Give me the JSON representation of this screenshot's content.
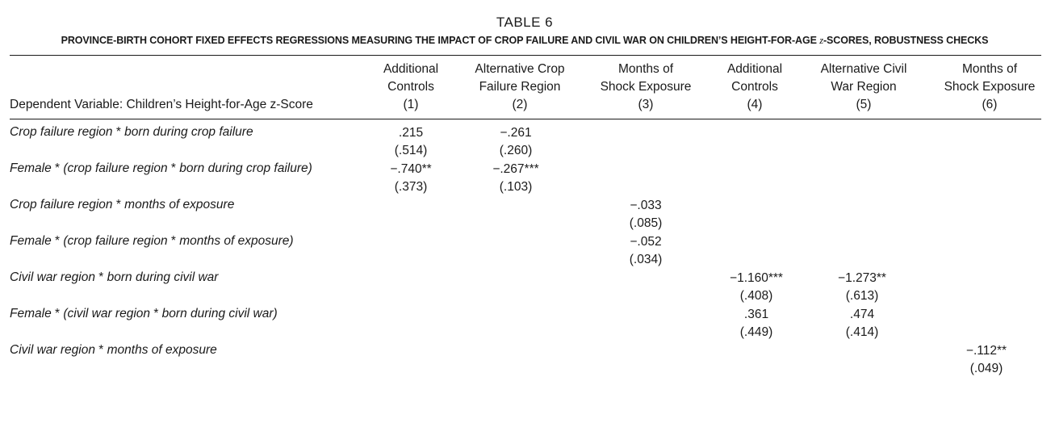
{
  "table": {
    "number": "TABLE 6",
    "caption_pre": "PROVINCE-BIRTH COHORT FIXED EFFECTS REGRESSIONS MEASURING THE IMPACT OF CROP FAILURE AND CIVIL WAR ON CHILDREN’S HEIGHT-FOR-AGE ",
    "caption_z": "z",
    "caption_post": "-SCORES, ROBUSTNESS CHECKS",
    "dependent_variable": "Dependent Variable: Children’s Height-for-Age z-Score",
    "columns": [
      {
        "line1": "Additional",
        "line2": "Controls",
        "num": "(1)"
      },
      {
        "line1": "Alternative Crop",
        "line2": "Failure Region",
        "num": "(2)"
      },
      {
        "line1": "Months of",
        "line2": "Shock Exposure",
        "num": "(3)"
      },
      {
        "line1": "Additional",
        "line2": "Controls",
        "num": "(4)"
      },
      {
        "line1": "Alternative Civil",
        "line2": "War Region",
        "num": "(5)"
      },
      {
        "line1": "Months of",
        "line2": "Shock Exposure",
        "num": "(6)"
      }
    ],
    "rows": [
      {
        "a": "Crop failure region ",
        "b": "*",
        "c": " born during crop failure",
        "d": "",
        "e": "",
        "f": ""
      },
      {
        "a": "Female ",
        "b": "*",
        "c": " (crop failure region ",
        "d": "*",
        "e": " born during crop failure)",
        "f": ""
      },
      {
        "a": "Crop failure region ",
        "b": "*",
        "c": " months of exposure",
        "d": "",
        "e": "",
        "f": ""
      },
      {
        "a": "Female ",
        "b": "*",
        "c": " (crop failure region ",
        "d": "*",
        "e": " months of exposure)",
        "f": ""
      },
      {
        "a": "Civil war region ",
        "b": "*",
        "c": " born during civil war",
        "d": "",
        "e": "",
        "f": ""
      },
      {
        "a": "Female ",
        "b": "*",
        "c": " (civil war region ",
        "d": "*",
        "e": " born during civil war)",
        "f": ""
      },
      {
        "a": "Civil war region ",
        "b": "*",
        "c": " months of exposure",
        "d": "",
        "e": "",
        "f": ""
      }
    ],
    "cells": {
      "r1c1": {
        "coef": ".215",
        "se": "(.514)"
      },
      "r1c2": {
        "coef": "−.261",
        "se": "(.260)"
      },
      "r2c1": {
        "coef": "−.740**",
        "se": "(.373)"
      },
      "r2c2": {
        "coef": "−.267***",
        "se": "(.103)"
      },
      "r3c3": {
        "coef": "−.033",
        "se": "(.085)"
      },
      "r4c3": {
        "coef": "−.052",
        "se": "(.034)"
      },
      "r5c4": {
        "coef": "−1.160***",
        "se": "(.408)"
      },
      "r5c5": {
        "coef": "−1.273**",
        "se": "(.613)"
      },
      "r6c4": {
        "coef": ".361",
        "se": "(.449)"
      },
      "r6c5": {
        "coef": ".474",
        "se": "(.414)"
      },
      "r7c6": {
        "coef": "−.112**",
        "se": "(.049)"
      }
    }
  }
}
